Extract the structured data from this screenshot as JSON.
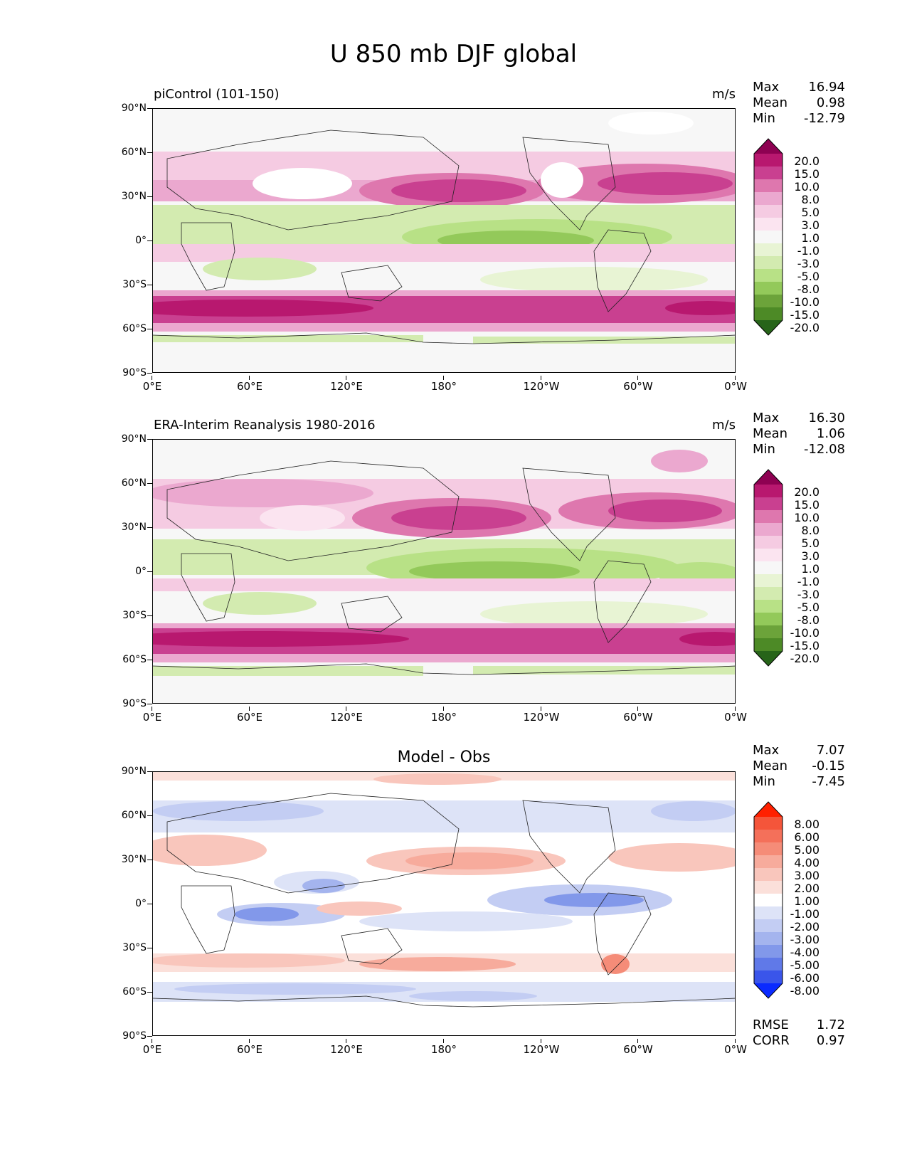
{
  "title": "U 850 mb DJF global",
  "y_ticks": [
    "90°N",
    "60°N",
    "30°N",
    "0°",
    "30°S",
    "60°S",
    "90°S"
  ],
  "x_ticks": [
    "0°E",
    "60°E",
    "120°E",
    "180°",
    "120°W",
    "60°W",
    "0°W"
  ],
  "stat_labels": {
    "max": "Max",
    "mean": "Mean",
    "min": "Min"
  },
  "panels": [
    {
      "title": "piControl (101-150)",
      "units": "m/s",
      "stats": {
        "max": "16.94",
        "mean": "0.98",
        "min": "-12.79"
      },
      "colorbar": {
        "levels": [
          "20.0",
          "15.0",
          "10.0",
          "8.0",
          "5.0",
          "3.0",
          "1.0",
          "-1.0",
          "-3.0",
          "-5.0",
          "-8.0",
          "-10.0",
          "-15.0",
          "-20.0"
        ],
        "colors": [
          "#8e0152",
          "#b8186f",
          "#c94090",
          "#de77ae",
          "#eba8cf",
          "#f5cbe2",
          "#fbe4f0",
          "#f7f7f7",
          "#e8f4d4",
          "#d3ebb0",
          "#b8e186",
          "#93c95a",
          "#6ca33a",
          "#4d8a26",
          "#276419"
        ]
      }
    },
    {
      "title": "ERA-Interim Reanalysis 1980-2016",
      "units": "m/s",
      "stats": {
        "max": "16.30",
        "mean": "1.06",
        "min": "-12.08"
      },
      "colorbar": {
        "levels": [
          "20.0",
          "15.0",
          "10.0",
          "8.0",
          "5.0",
          "3.0",
          "1.0",
          "-1.0",
          "-3.0",
          "-5.0",
          "-8.0",
          "-10.0",
          "-15.0",
          "-20.0"
        ],
        "colors": [
          "#8e0152",
          "#b8186f",
          "#c94090",
          "#de77ae",
          "#eba8cf",
          "#f5cbe2",
          "#fbe4f0",
          "#f7f7f7",
          "#e8f4d4",
          "#d3ebb0",
          "#b8e186",
          "#93c95a",
          "#6ca33a",
          "#4d8a26",
          "#276419"
        ]
      }
    },
    {
      "title": "Model - Obs",
      "units": "",
      "stats": {
        "max": "7.07",
        "mean": "-0.15",
        "min": "-7.45"
      },
      "colorbar": {
        "levels": [
          "8.00",
          "6.00",
          "5.00",
          "4.00",
          "3.00",
          "2.00",
          "1.00",
          "-1.00",
          "-2.00",
          "-3.00",
          "-4.00",
          "-5.00",
          "-6.00",
          "-8.00"
        ],
        "colors": [
          "#ff2000",
          "#f4553a",
          "#f4705a",
          "#f58c78",
          "#f7ab9c",
          "#f9c6bc",
          "#fbe0da",
          "#ffffff",
          "#dde3f7",
          "#c3cdf3",
          "#a4b4ee",
          "#8298ea",
          "#6079e8",
          "#3a55ea",
          "#0a2aff"
        ]
      },
      "metrics": {
        "rmse_label": "RMSE",
        "rmse": "1.72",
        "corr_label": "CORR",
        "corr": "0.97"
      }
    }
  ]
}
